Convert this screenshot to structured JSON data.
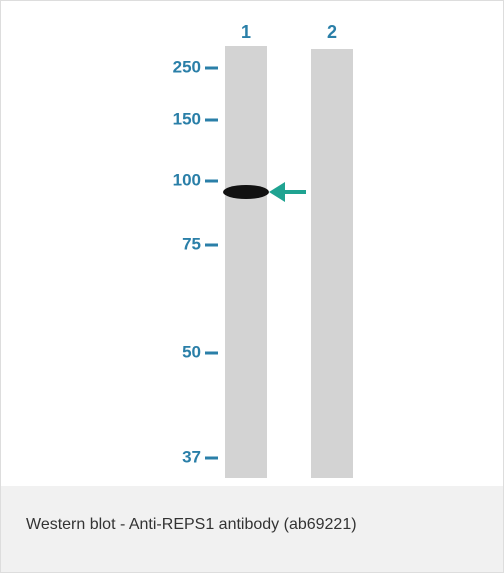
{
  "lanes": [
    "1",
    "2"
  ],
  "markers": [
    "250",
    "150",
    "100",
    "75",
    "50",
    "37"
  ],
  "caption": "Western blot - Anti-REPS1 antibody (ab69221)"
}
